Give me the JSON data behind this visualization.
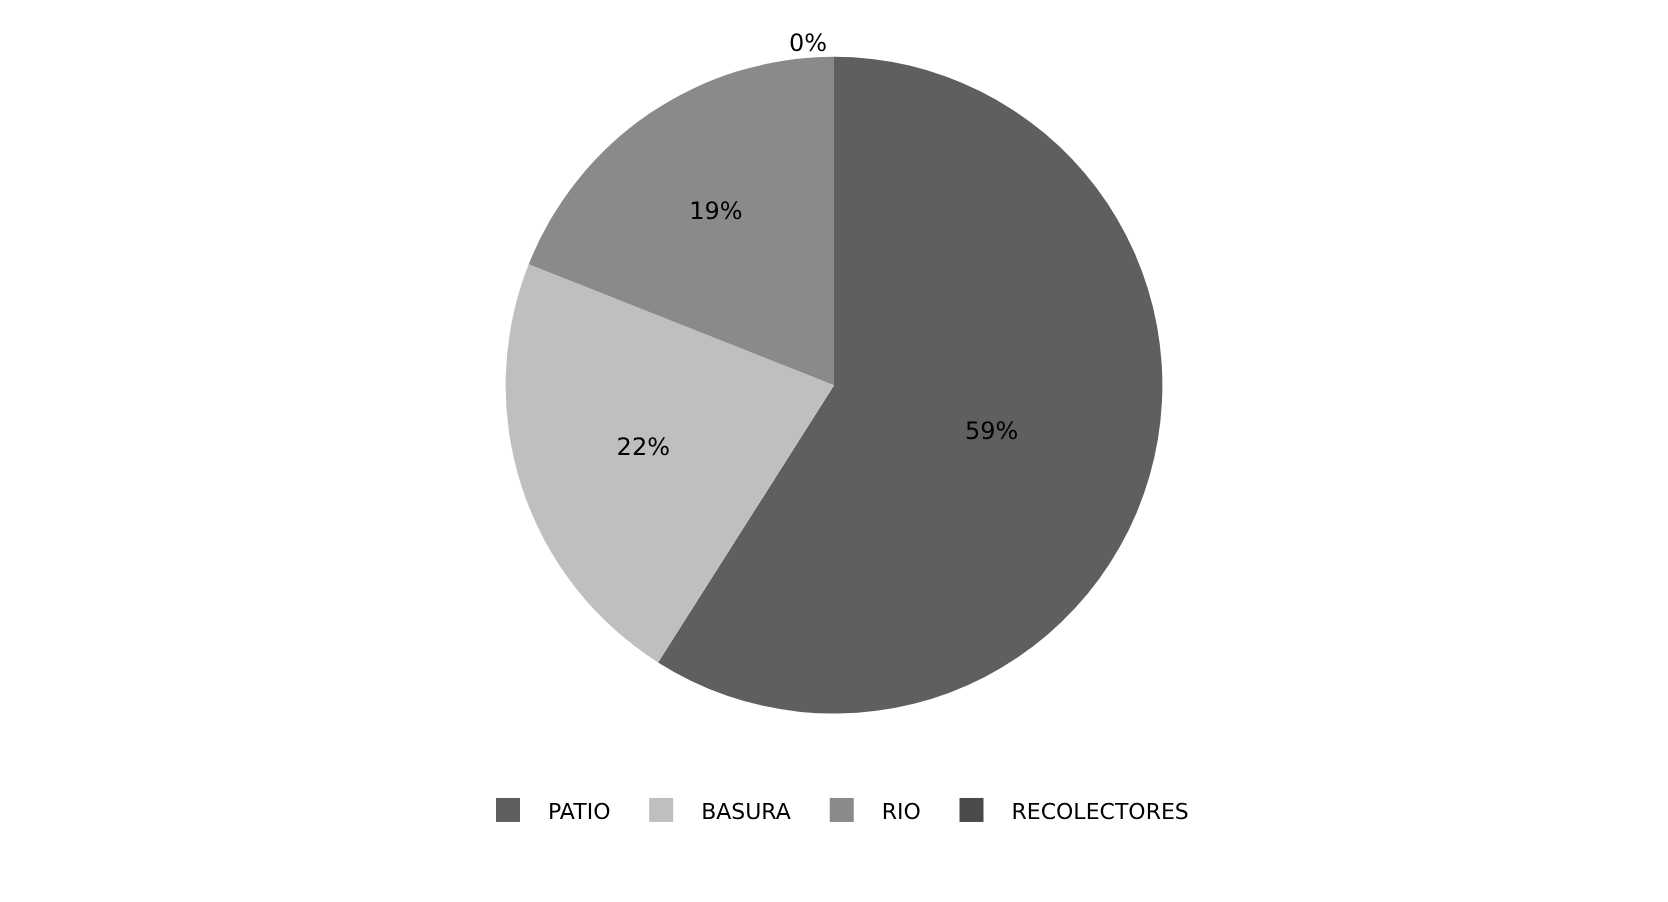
{
  "chart_data": {
    "type": "pie",
    "categories": [
      "PATIO",
      "BASURA",
      "RIO",
      "RECOLECTORES"
    ],
    "values": [
      59,
      22,
      19,
      0
    ],
    "value_labels": [
      "59%",
      "22%",
      "19%",
      "0%"
    ],
    "colors": [
      "#5f5f5f",
      "#bfbfbf",
      "#8a8a8a",
      "#4a4a4a"
    ],
    "legend": "bottom"
  }
}
